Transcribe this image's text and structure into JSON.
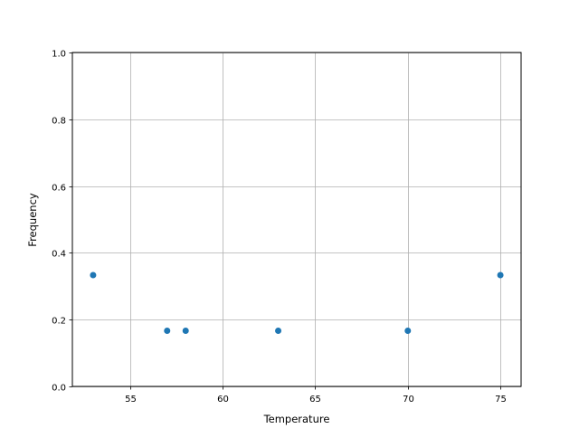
{
  "chart_data": {
    "type": "scatter",
    "title": "",
    "xlabel": "Temperature",
    "ylabel": "Frequency",
    "xlim": [
      51.88,
      76.12
    ],
    "ylim": [
      0,
      1
    ],
    "xticks": [
      55,
      60,
      65,
      70,
      75
    ],
    "xtick_labels": [
      "55",
      "60",
      "65",
      "70",
      "75"
    ],
    "yticks": [
      0,
      0.2,
      0.4,
      0.6,
      0.8,
      1.0
    ],
    "ytick_labels": [
      "0.0",
      "0.2",
      "0.4",
      "0.6",
      "0.8",
      "1.0"
    ],
    "grid": true,
    "marker_color": "#1f77b4",
    "grid_color": "#b0b0b0",
    "points": [
      {
        "x": 53,
        "y": 0.3333
      },
      {
        "x": 57,
        "y": 0.1667
      },
      {
        "x": 58,
        "y": 0.1667
      },
      {
        "x": 63,
        "y": 0.1667
      },
      {
        "x": 70,
        "y": 0.1667
      },
      {
        "x": 75,
        "y": 0.3333
      }
    ]
  }
}
